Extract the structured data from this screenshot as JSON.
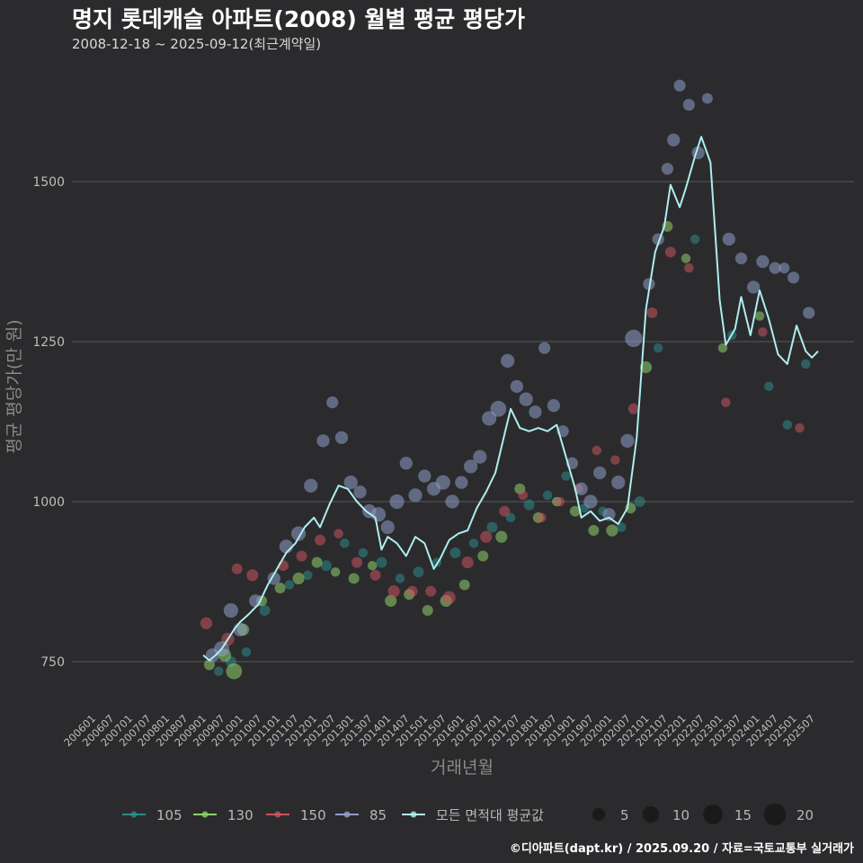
{
  "title": "명지 롯데캐슬 아파트(2008) 월별 평균 평당가",
  "subtitle": "2008-12-18 ~ 2025-09-12(최근계약일)",
  "caption": "©디아파트(dapt.kr) / 2025.09.20 / 자료=국토교통부 실거래가",
  "colors": {
    "background": "#2b2b2d",
    "grid": "#5a5a5e",
    "s105": "#2e8b8b",
    "s130": "#8fd16a",
    "s150": "#c9535e",
    "s85": "#8e9fc9",
    "avg": "#aeeeee"
  },
  "legend": {
    "series": [
      {
        "key": "s105",
        "label": "105"
      },
      {
        "key": "s130",
        "label": "130"
      },
      {
        "key": "s150",
        "label": "150"
      },
      {
        "key": "s85",
        "label": "85"
      },
      {
        "key": "avg",
        "label": "모든 면적대 평균값"
      }
    ],
    "sizes": [
      {
        "value": 5,
        "label": "5"
      },
      {
        "value": 10,
        "label": "10"
      },
      {
        "value": 15,
        "label": "15"
      },
      {
        "value": 20,
        "label": "20"
      }
    ]
  },
  "chart_data": {
    "type": "scatter",
    "xlabel": "거래년월",
    "ylabel": "평균 평당가(만 원)",
    "x_range": [
      "2006-01",
      "2025-09"
    ],
    "ylim": [
      680,
      1660
    ],
    "y_ticks": [
      "750",
      "1000",
      "1250",
      "1500"
    ],
    "x_ticks": [
      "200601",
      "200607",
      "200701",
      "200707",
      "200801",
      "200807",
      "200901",
      "200907",
      "201001",
      "201007",
      "201101",
      "201107",
      "201201",
      "201207",
      "201301",
      "201307",
      "201401",
      "201407",
      "201501",
      "201507",
      "201601",
      "201607",
      "201701",
      "201707",
      "201801",
      "201807",
      "201901",
      "201907",
      "202001",
      "202007",
      "202101",
      "202107",
      "202201",
      "202207",
      "202301",
      "202307",
      "202401",
      "202407",
      "202501",
      "202507"
    ],
    "grid": "horizontal",
    "legend_position": "bottom",
    "average_line": {
      "name": "모든 면적대 평균값",
      "points": [
        [
          "2009-01",
          760
        ],
        [
          "2009-03",
          752
        ],
        [
          "2009-05",
          760
        ],
        [
          "2009-07",
          770
        ],
        [
          "2009-09",
          785
        ],
        [
          "2009-11",
          800
        ],
        [
          "2010-01",
          812
        ],
        [
          "2010-04",
          825
        ],
        [
          "2010-07",
          840
        ],
        [
          "2010-10",
          870
        ],
        [
          "2011-01",
          895
        ],
        [
          "2011-04",
          920
        ],
        [
          "2011-07",
          935
        ],
        [
          "2011-10",
          960
        ],
        [
          "2012-01",
          975
        ],
        [
          "2012-03",
          960
        ],
        [
          "2012-06",
          995
        ],
        [
          "2012-09",
          1025
        ],
        [
          "2012-12",
          1020
        ],
        [
          "2013-03",
          1000
        ],
        [
          "2013-06",
          985
        ],
        [
          "2013-09",
          975
        ],
        [
          "2013-11",
          925
        ],
        [
          "2014-01",
          945
        ],
        [
          "2014-04",
          935
        ],
        [
          "2014-07",
          915
        ],
        [
          "2014-10",
          945
        ],
        [
          "2015-01",
          935
        ],
        [
          "2015-04",
          895
        ],
        [
          "2015-06",
          910
        ],
        [
          "2015-09",
          940
        ],
        [
          "2015-12",
          950
        ],
        [
          "2016-03",
          955
        ],
        [
          "2016-06",
          990
        ],
        [
          "2016-09",
          1015
        ],
        [
          "2016-12",
          1045
        ],
        [
          "2017-03",
          1105
        ],
        [
          "2017-05",
          1145
        ],
        [
          "2017-08",
          1115
        ],
        [
          "2017-11",
          1110
        ],
        [
          "2018-02",
          1115
        ],
        [
          "2018-05",
          1110
        ],
        [
          "2018-08",
          1120
        ],
        [
          "2018-11",
          1070
        ],
        [
          "2019-02",
          1020
        ],
        [
          "2019-04",
          975
        ],
        [
          "2019-07",
          985
        ],
        [
          "2019-10",
          970
        ],
        [
          "2020-01",
          975
        ],
        [
          "2020-04",
          965
        ],
        [
          "2020-07",
          990
        ],
        [
          "2020-10",
          1100
        ],
        [
          "2021-01",
          1300
        ],
        [
          "2021-04",
          1390
        ],
        [
          "2021-07",
          1430
        ],
        [
          "2021-09",
          1495
        ],
        [
          "2021-12",
          1460
        ],
        [
          "2022-02",
          1490
        ],
        [
          "2022-05",
          1540
        ],
        [
          "2022-07",
          1570
        ],
        [
          "2022-10",
          1530
        ],
        [
          "2023-01",
          1315
        ],
        [
          "2023-03",
          1245
        ],
        [
          "2023-06",
          1270
        ],
        [
          "2023-08",
          1320
        ],
        [
          "2023-11",
          1260
        ],
        [
          "2024-02",
          1330
        ],
        [
          "2024-05",
          1285
        ],
        [
          "2024-08",
          1230
        ],
        [
          "2024-11",
          1215
        ],
        [
          "2025-02",
          1275
        ],
        [
          "2025-05",
          1235
        ],
        [
          "2025-07",
          1225
        ],
        [
          "2025-09",
          1235
        ]
      ]
    },
    "series": [
      {
        "name": "105",
        "points": [
          [
            "2009-06",
            735,
            2
          ],
          [
            "2009-10",
            750,
            3
          ],
          [
            "2010-03",
            765,
            2
          ],
          [
            "2010-09",
            830,
            3
          ],
          [
            "2011-05",
            870,
            2
          ],
          [
            "2011-11",
            885,
            2
          ],
          [
            "2012-05",
            900,
            3
          ],
          [
            "2012-11",
            935,
            2
          ],
          [
            "2013-05",
            920,
            2
          ],
          [
            "2013-11",
            905,
            3
          ],
          [
            "2014-05",
            880,
            2
          ],
          [
            "2014-11",
            890,
            3
          ],
          [
            "2015-05",
            905,
            2
          ],
          [
            "2015-11",
            920,
            3
          ],
          [
            "2016-05",
            935,
            2
          ],
          [
            "2016-11",
            960,
            3
          ],
          [
            "2017-05",
            975,
            2
          ],
          [
            "2017-11",
            995,
            3
          ],
          [
            "2018-05",
            1010,
            2
          ],
          [
            "2018-11",
            1040,
            2
          ],
          [
            "2019-05",
            990,
            2
          ],
          [
            "2019-11",
            985,
            2
          ],
          [
            "2020-05",
            960,
            2
          ],
          [
            "2020-11",
            1000,
            3
          ],
          [
            "2021-05",
            1240,
            2
          ],
          [
            "2022-05",
            1410,
            2
          ],
          [
            "2023-05",
            1260,
            2
          ],
          [
            "2024-05",
            1180,
            2
          ],
          [
            "2024-11",
            1120,
            2
          ],
          [
            "2025-05",
            1215,
            2
          ]
        ]
      },
      {
        "name": "130",
        "points": [
          [
            "2009-03",
            745,
            3
          ],
          [
            "2009-08",
            760,
            5
          ],
          [
            "2009-11",
            735,
            9
          ],
          [
            "2010-02",
            800,
            4
          ],
          [
            "2010-08",
            845,
            3
          ],
          [
            "2011-02",
            865,
            3
          ],
          [
            "2011-08",
            880,
            4
          ],
          [
            "2012-02",
            905,
            3
          ],
          [
            "2012-08",
            890,
            2
          ],
          [
            "2013-02",
            880,
            3
          ],
          [
            "2013-08",
            900,
            2
          ],
          [
            "2014-02",
            845,
            4
          ],
          [
            "2014-08",
            855,
            3
          ],
          [
            "2015-02",
            830,
            3
          ],
          [
            "2015-08",
            845,
            4
          ],
          [
            "2016-02",
            870,
            3
          ],
          [
            "2016-08",
            915,
            3
          ],
          [
            "2017-02",
            945,
            4
          ],
          [
            "2017-08",
            1020,
            3
          ],
          [
            "2018-02",
            975,
            3
          ],
          [
            "2018-08",
            1000,
            2
          ],
          [
            "2019-02",
            985,
            3
          ],
          [
            "2019-08",
            955,
            3
          ],
          [
            "2020-02",
            955,
            4
          ],
          [
            "2020-08",
            990,
            3
          ],
          [
            "2021-01",
            1210,
            4
          ],
          [
            "2021-08",
            1430,
            3
          ],
          [
            "2022-02",
            1380,
            2
          ],
          [
            "2023-02",
            1240,
            2
          ],
          [
            "2024-02",
            1290,
            2
          ]
        ]
      },
      {
        "name": "150",
        "points": [
          [
            "2009-02",
            810,
            4
          ],
          [
            "2009-09",
            785,
            5
          ],
          [
            "2009-12",
            895,
            3
          ],
          [
            "2010-05",
            885,
            4
          ],
          [
            "2011-03",
            900,
            3
          ],
          [
            "2011-09",
            915,
            3
          ],
          [
            "2012-03",
            940,
            3
          ],
          [
            "2012-09",
            950,
            2
          ],
          [
            "2013-03",
            905,
            3
          ],
          [
            "2013-09",
            885,
            3
          ],
          [
            "2014-03",
            860,
            4
          ],
          [
            "2014-09",
            860,
            3
          ],
          [
            "2015-03",
            860,
            3
          ],
          [
            "2015-09",
            850,
            5
          ],
          [
            "2016-03",
            905,
            4
          ],
          [
            "2016-09",
            945,
            4
          ],
          [
            "2017-03",
            985,
            3
          ],
          [
            "2017-09",
            1010,
            2
          ],
          [
            "2018-03",
            975,
            2
          ],
          [
            "2018-09",
            1000,
            2
          ],
          [
            "2019-03",
            1020,
            2
          ],
          [
            "2019-09",
            1080,
            2
          ],
          [
            "2020-03",
            1065,
            2
          ],
          [
            "2020-09",
            1145,
            3
          ],
          [
            "2021-03",
            1295,
            3
          ],
          [
            "2021-09",
            1390,
            3
          ],
          [
            "2022-03",
            1365,
            2
          ],
          [
            "2023-03",
            1155,
            2
          ],
          [
            "2024-03",
            1265,
            2
          ],
          [
            "2025-03",
            1115,
            2
          ]
        ]
      },
      {
        "name": "85",
        "points": [
          [
            "2009-04",
            760,
            6
          ],
          [
            "2009-07",
            770,
            8
          ],
          [
            "2009-10",
            830,
            7
          ],
          [
            "2010-01",
            800,
            6
          ],
          [
            "2010-06",
            845,
            5
          ],
          [
            "2010-12",
            880,
            5
          ],
          [
            "2011-04",
            930,
            6
          ],
          [
            "2011-08",
            950,
            7
          ],
          [
            "2011-12",
            1025,
            6
          ],
          [
            "2012-04",
            1095,
            5
          ],
          [
            "2012-07",
            1155,
            4
          ],
          [
            "2012-10",
            1100,
            5
          ],
          [
            "2013-01",
            1030,
            6
          ],
          [
            "2013-04",
            1015,
            5
          ],
          [
            "2013-07",
            985,
            6
          ],
          [
            "2013-10",
            980,
            7
          ],
          [
            "2014-01",
            960,
            6
          ],
          [
            "2014-04",
            1000,
            7
          ],
          [
            "2014-07",
            1060,
            5
          ],
          [
            "2014-10",
            1010,
            6
          ],
          [
            "2015-01",
            1040,
            5
          ],
          [
            "2015-04",
            1020,
            6
          ],
          [
            "2015-07",
            1030,
            7
          ],
          [
            "2015-10",
            1000,
            6
          ],
          [
            "2016-01",
            1030,
            5
          ],
          [
            "2016-04",
            1055,
            6
          ],
          [
            "2016-07",
            1070,
            6
          ],
          [
            "2016-10",
            1130,
            7
          ],
          [
            "2017-01",
            1145,
            9
          ],
          [
            "2017-04",
            1220,
            6
          ],
          [
            "2017-07",
            1180,
            5
          ],
          [
            "2017-10",
            1160,
            6
          ],
          [
            "2018-01",
            1140,
            5
          ],
          [
            "2018-04",
            1240,
            4
          ],
          [
            "2018-07",
            1150,
            5
          ],
          [
            "2018-10",
            1110,
            4
          ],
          [
            "2019-01",
            1060,
            4
          ],
          [
            "2019-04",
            1020,
            5
          ],
          [
            "2019-07",
            1000,
            6
          ],
          [
            "2019-10",
            1045,
            5
          ],
          [
            "2020-01",
            980,
            5
          ],
          [
            "2020-04",
            1030,
            6
          ],
          [
            "2020-07",
            1095,
            6
          ],
          [
            "2020-09",
            1255,
            11
          ],
          [
            "2021-02",
            1340,
            4
          ],
          [
            "2021-05",
            1410,
            4
          ],
          [
            "2021-08",
            1520,
            4
          ],
          [
            "2021-10",
            1565,
            5
          ],
          [
            "2021-12",
            1650,
            4
          ],
          [
            "2022-03",
            1620,
            4
          ],
          [
            "2022-06",
            1545,
            5
          ],
          [
            "2022-09",
            1630,
            3
          ],
          [
            "2023-04",
            1410,
            5
          ],
          [
            "2023-08",
            1380,
            4
          ],
          [
            "2023-12",
            1335,
            5
          ],
          [
            "2024-03",
            1375,
            5
          ],
          [
            "2024-07",
            1365,
            4
          ],
          [
            "2024-10",
            1365,
            3
          ],
          [
            "2025-01",
            1350,
            4
          ],
          [
            "2025-06",
            1295,
            4
          ]
        ]
      }
    ]
  }
}
